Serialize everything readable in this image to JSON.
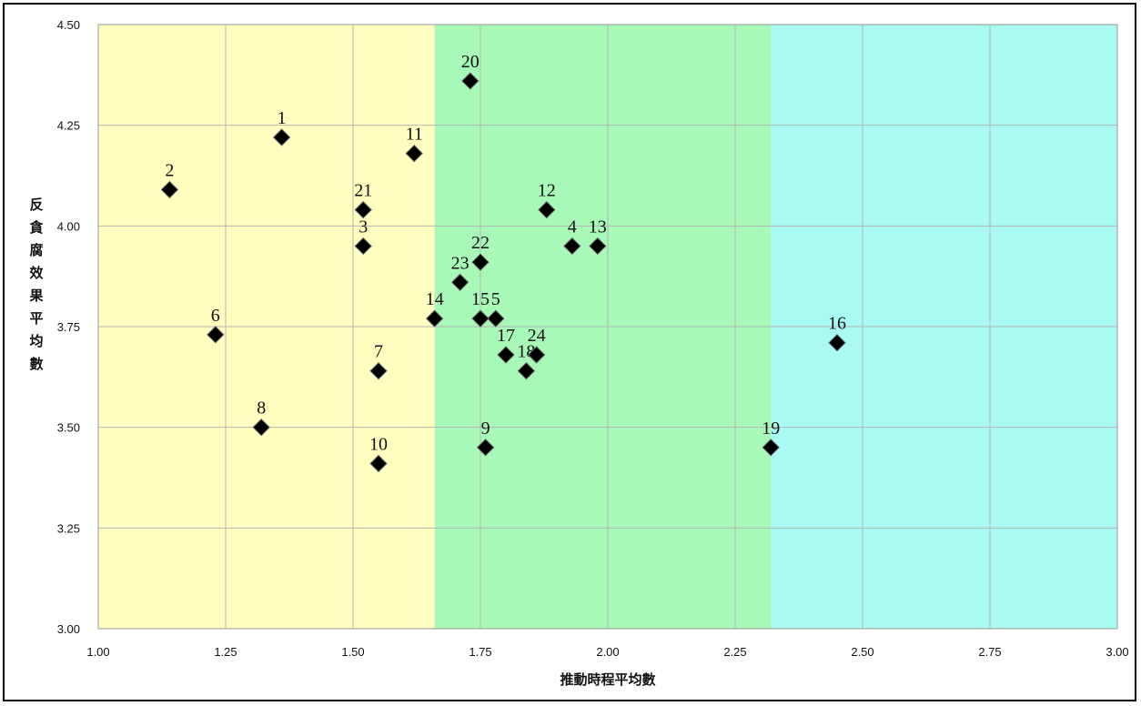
{
  "chart_data": {
    "type": "scatter",
    "xlabel": "推動時程平均數",
    "ylabel": "反貪腐效果平均數",
    "xlim": [
      1.0,
      3.0
    ],
    "ylim": [
      3.0,
      4.5
    ],
    "x_ticks": [
      "1.00",
      "1.25",
      "1.50",
      "1.75",
      "2.00",
      "2.25",
      "2.50",
      "2.75",
      "3.00"
    ],
    "y_ticks": [
      "3.00",
      "3.25",
      "3.50",
      "3.75",
      "4.00",
      "4.25",
      "4.50"
    ],
    "grid": true,
    "regions": [
      {
        "x_range": [
          1.0,
          1.66
        ],
        "color": "#ffffc0"
      },
      {
        "x_range": [
          1.66,
          2.32
        ],
        "color": "#a8f8b8"
      },
      {
        "x_range": [
          2.32,
          3.0
        ],
        "color": "#a8faf2"
      }
    ],
    "marker_color": "#000000",
    "points": [
      {
        "label": "1",
        "x": 1.36,
        "y": 4.22
      },
      {
        "label": "2",
        "x": 1.14,
        "y": 4.09
      },
      {
        "label": "3",
        "x": 1.52,
        "y": 3.95
      },
      {
        "label": "4",
        "x": 1.93,
        "y": 3.95
      },
      {
        "label": "5",
        "x": 1.78,
        "y": 3.77
      },
      {
        "label": "6",
        "x": 1.23,
        "y": 3.73
      },
      {
        "label": "7",
        "x": 1.55,
        "y": 3.64
      },
      {
        "label": "8",
        "x": 1.32,
        "y": 3.5
      },
      {
        "label": "9",
        "x": 1.76,
        "y": 3.45
      },
      {
        "label": "10",
        "x": 1.55,
        "y": 3.41
      },
      {
        "label": "11",
        "x": 1.62,
        "y": 4.18
      },
      {
        "label": "12",
        "x": 1.88,
        "y": 4.04
      },
      {
        "label": "13",
        "x": 1.98,
        "y": 3.95
      },
      {
        "label": "14",
        "x": 1.66,
        "y": 3.77
      },
      {
        "label": "15",
        "x": 1.75,
        "y": 3.77
      },
      {
        "label": "16",
        "x": 2.45,
        "y": 3.71
      },
      {
        "label": "17",
        "x": 1.8,
        "y": 3.68
      },
      {
        "label": "18",
        "x": 1.84,
        "y": 3.64
      },
      {
        "label": "19",
        "x": 2.32,
        "y": 3.45
      },
      {
        "label": "20",
        "x": 1.73,
        "y": 4.36
      },
      {
        "label": "21",
        "x": 1.52,
        "y": 4.04
      },
      {
        "label": "22",
        "x": 1.75,
        "y": 3.91
      },
      {
        "label": "23",
        "x": 1.71,
        "y": 3.86
      },
      {
        "label": "24",
        "x": 1.86,
        "y": 3.68
      }
    ]
  }
}
